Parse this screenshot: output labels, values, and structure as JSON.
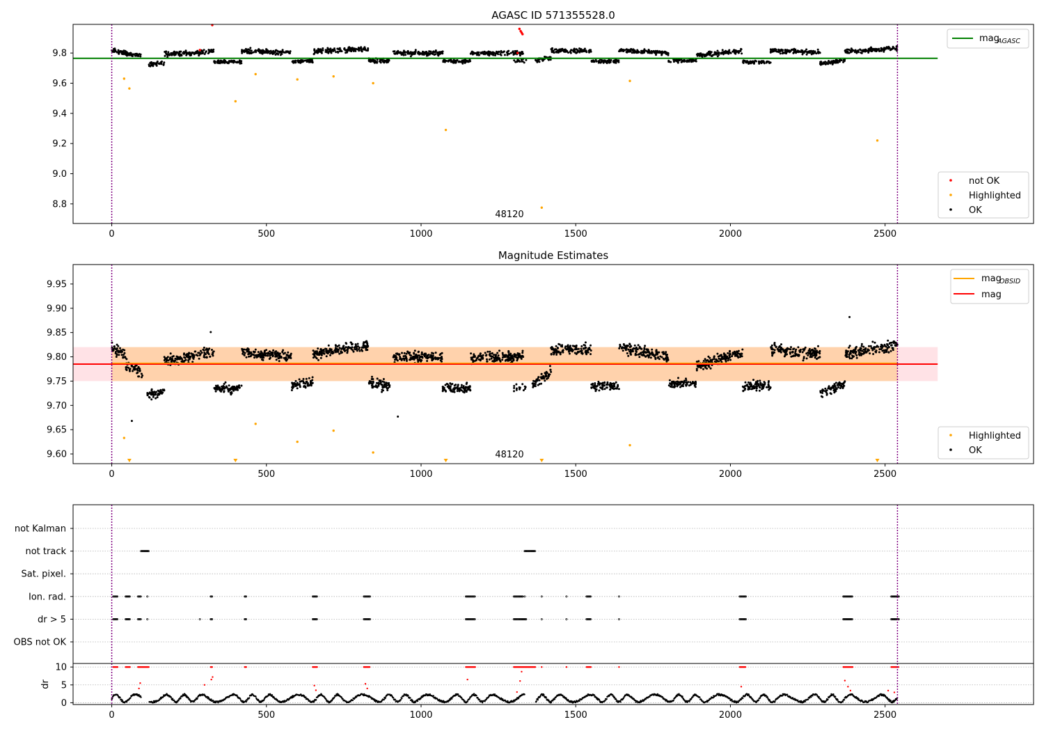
{
  "chart_data": [
    {
      "type": "scatter",
      "title": "AGASC ID 571355528.0",
      "xlim": [
        -125,
        2980
      ],
      "ylim": [
        8.67,
        9.99
      ],
      "xticks": [
        0,
        500,
        1000,
        1500,
        2000,
        2500
      ],
      "yticks": [
        8.8,
        9.0,
        9.2,
        9.4,
        9.6,
        9.8
      ],
      "grid": false,
      "legend_top": {
        "placement": "top-right",
        "entries": [
          {
            "label": "mag",
            "sub": "AGASC",
            "color": "#008000"
          }
        ]
      },
      "legend_bottom": {
        "placement": "bottom-right",
        "entries": [
          {
            "label": "not OK",
            "color": "#ff0000"
          },
          {
            "label": "Highlighted",
            "color": "#ffa500"
          },
          {
            "label": "OK",
            "color": "#000000"
          }
        ]
      },
      "hline": {
        "name": "mag_AGASC",
        "y": 9.765,
        "x": [
          -125,
          2670
        ],
        "color": "#008000"
      },
      "vlines": [
        0,
        2540
      ],
      "annotation": {
        "text": "48120",
        "x": 1270,
        "y": 8.7
      },
      "highlighted": [
        [
          40,
          9.63
        ],
        [
          57,
          9.565
        ],
        [
          400,
          9.48
        ],
        [
          465,
          9.66
        ],
        [
          600,
          9.625
        ],
        [
          717,
          9.645
        ],
        [
          845,
          9.6
        ],
        [
          1080,
          9.29
        ],
        [
          1390,
          8.775
        ],
        [
          1675,
          9.615
        ],
        [
          2475,
          9.22
        ]
      ],
      "not_ok": [
        [
          325,
          9.99
        ],
        [
          1318,
          9.96
        ],
        [
          1322,
          9.945
        ],
        [
          1325,
          9.935
        ],
        [
          1328,
          9.925
        ],
        [
          1312,
          9.8
        ],
        [
          285,
          9.82
        ]
      ],
      "ok_segments": [
        {
          "x": [
            0,
            45
          ],
          "base": 9.81,
          "trend": -0.02,
          "spread": 0.02,
          "n": 40
        },
        {
          "x": [
            45,
            95
          ],
          "base": 9.79,
          "trend": -0.01,
          "spread": 0.02,
          "n": 40
        },
        {
          "x": [
            120,
            170
          ],
          "base": 9.73,
          "trend": 0.01,
          "spread": 0.02,
          "n": 40
        },
        {
          "x": [
            170,
            330
          ],
          "base": 9.8,
          "trend": 0.02,
          "spread": 0.02,
          "n": 120
        },
        {
          "x": [
            330,
            420
          ],
          "base": 9.74,
          "trend": 0.0,
          "spread": 0.015,
          "n": 70
        },
        {
          "x": [
            420,
            580
          ],
          "base": 9.81,
          "trend": -0.01,
          "spread": 0.02,
          "n": 120
        },
        {
          "x": [
            580,
            650
          ],
          "base": 9.745,
          "trend": 0.01,
          "spread": 0.015,
          "n": 60
        },
        {
          "x": [
            650,
            830
          ],
          "base": 9.82,
          "trend": 0.02,
          "spread": 0.02,
          "n": 140
        },
        {
          "x": [
            830,
            900
          ],
          "base": 9.75,
          "trend": 0.0,
          "spread": 0.02,
          "n": 55
        },
        {
          "x": [
            910,
            1070
          ],
          "base": 9.8,
          "trend": 0.0,
          "spread": 0.02,
          "n": 120
        },
        {
          "x": [
            1070,
            1160
          ],
          "base": 9.745,
          "trend": 0.0,
          "spread": 0.015,
          "n": 70
        },
        {
          "x": [
            1160,
            1330
          ],
          "base": 9.8,
          "trend": 0.0,
          "spread": 0.02,
          "n": 130
        },
        {
          "x": [
            1300,
            1340
          ],
          "base": 9.75,
          "trend": 0.0,
          "spread": 0.02,
          "n": 15
        },
        {
          "x": [
            1370,
            1420
          ],
          "base": 9.76,
          "trend": 0.02,
          "spread": 0.02,
          "n": 40
        },
        {
          "x": [
            1420,
            1550
          ],
          "base": 9.815,
          "trend": 0.0,
          "spread": 0.02,
          "n": 100
        },
        {
          "x": [
            1550,
            1640
          ],
          "base": 9.745,
          "trend": 0.0,
          "spread": 0.015,
          "n": 70
        },
        {
          "x": [
            1640,
            1800
          ],
          "base": 9.81,
          "trend": -0.02,
          "spread": 0.02,
          "n": 120
        },
        {
          "x": [
            1800,
            1890
          ],
          "base": 9.75,
          "trend": 0.0,
          "spread": 0.015,
          "n": 65
        },
        {
          "x": [
            1890,
            2040
          ],
          "base": 9.8,
          "trend": 0.03,
          "spread": 0.02,
          "n": 120
        },
        {
          "x": [
            2040,
            2130
          ],
          "base": 9.74,
          "trend": 0.0,
          "spread": 0.015,
          "n": 65
        },
        {
          "x": [
            2130,
            2290
          ],
          "base": 9.81,
          "trend": -0.01,
          "spread": 0.02,
          "n": 120
        },
        {
          "x": [
            2290,
            2370
          ],
          "base": 9.74,
          "trend": 0.02,
          "spread": 0.015,
          "n": 60
        },
        {
          "x": [
            2370,
            2540
          ],
          "base": 9.82,
          "trend": 0.02,
          "spread": 0.02,
          "n": 130
        }
      ]
    },
    {
      "type": "scatter",
      "title": "Magnitude Estimates",
      "xlim": [
        -125,
        2980
      ],
      "ylim": [
        9.58,
        9.99
      ],
      "xticks": [
        0,
        500,
        1000,
        1500,
        2000,
        2500
      ],
      "yticks": [
        9.6,
        9.65,
        9.7,
        9.75,
        9.8,
        9.85,
        9.9,
        9.95
      ],
      "grid": false,
      "legend_top": {
        "placement": "top-right",
        "entries": [
          {
            "label": "mag",
            "sub": "OBSID",
            "color": "#ffa500"
          },
          {
            "label": "mag",
            "color": "#ff0000"
          }
        ]
      },
      "legend_bottom": {
        "placement": "bottom-right",
        "entries": [
          {
            "label": "Highlighted",
            "color": "#ffa500"
          },
          {
            "label": "OK",
            "color": "#000000"
          }
        ]
      },
      "mag_line": {
        "y": 9.785,
        "band": [
          9.75,
          9.82
        ],
        "x": [
          -125,
          2670
        ],
        "color": "#ff0000"
      },
      "mag_obsid": {
        "y": 9.787,
        "band": [
          9.75,
          9.82
        ],
        "x": [
          0,
          2540
        ],
        "color": "#ffa500"
      },
      "vlines": [
        0,
        2540
      ],
      "annotation": {
        "text": "48120",
        "x": 1270,
        "y": 9.597
      },
      "highlighted": [
        [
          40,
          9.633
        ],
        [
          465,
          9.662
        ],
        [
          600,
          9.625
        ],
        [
          717,
          9.648
        ],
        [
          845,
          9.603
        ],
        [
          1675,
          9.618
        ]
      ],
      "off_scale_markers": [
        57,
        400,
        1080,
        1390,
        2475
      ],
      "isolated_ok": [
        [
          65,
          9.668
        ],
        [
          925,
          9.677
        ],
        [
          2385,
          9.882
        ],
        [
          320,
          9.851
        ]
      ],
      "ok_segments": [
        {
          "x": [
            0,
            45
          ],
          "base": 9.81,
          "trend": -0.02,
          "spread": 0.015,
          "n": 45
        },
        {
          "x": [
            45,
            100
          ],
          "base": 9.775,
          "trend": -0.02,
          "spread": 0.015,
          "n": 45
        },
        {
          "x": [
            115,
            170
          ],
          "base": 9.725,
          "trend": 0.01,
          "spread": 0.012,
          "n": 55
        },
        {
          "x": [
            170,
            330
          ],
          "base": 9.8,
          "trend": 0.02,
          "spread": 0.014,
          "n": 150
        },
        {
          "x": [
            330,
            420
          ],
          "base": 9.735,
          "trend": 0.0,
          "spread": 0.012,
          "n": 90
        },
        {
          "x": [
            420,
            580
          ],
          "base": 9.805,
          "trend": -0.01,
          "spread": 0.014,
          "n": 150
        },
        {
          "x": [
            580,
            650
          ],
          "base": 9.745,
          "trend": 0.01,
          "spread": 0.012,
          "n": 70
        },
        {
          "x": [
            650,
            830
          ],
          "base": 9.815,
          "trend": 0.02,
          "spread": 0.015,
          "n": 170
        },
        {
          "x": [
            830,
            900
          ],
          "base": 9.745,
          "trend": -0.01,
          "spread": 0.014,
          "n": 65
        },
        {
          "x": [
            910,
            1070
          ],
          "base": 9.8,
          "trend": 0.0,
          "spread": 0.014,
          "n": 150
        },
        {
          "x": [
            1070,
            1160
          ],
          "base": 9.735,
          "trend": 0.0,
          "spread": 0.012,
          "n": 85
        },
        {
          "x": [
            1160,
            1330
          ],
          "base": 9.8,
          "trend": 0.0,
          "spread": 0.014,
          "n": 160
        },
        {
          "x": [
            1300,
            1340
          ],
          "base": 9.735,
          "trend": 0.0,
          "spread": 0.012,
          "n": 15
        },
        {
          "x": [
            1360,
            1420
          ],
          "base": 9.755,
          "trend": 0.03,
          "spread": 0.015,
          "n": 55
        },
        {
          "x": [
            1420,
            1550
          ],
          "base": 9.815,
          "trend": 0.0,
          "spread": 0.014,
          "n": 120
        },
        {
          "x": [
            1550,
            1640
          ],
          "base": 9.74,
          "trend": 0.0,
          "spread": 0.012,
          "n": 85
        },
        {
          "x": [
            1640,
            1800
          ],
          "base": 9.81,
          "trend": -0.02,
          "spread": 0.014,
          "n": 150
        },
        {
          "x": [
            1800,
            1890
          ],
          "base": 9.745,
          "trend": 0.0,
          "spread": 0.012,
          "n": 80
        },
        {
          "x": [
            1890,
            2040
          ],
          "base": 9.795,
          "trend": 0.03,
          "spread": 0.014,
          "n": 140
        },
        {
          "x": [
            2040,
            2130
          ],
          "base": 9.74,
          "trend": 0.0,
          "spread": 0.012,
          "n": 80
        },
        {
          "x": [
            2130,
            2290
          ],
          "base": 9.81,
          "trend": -0.01,
          "spread": 0.015,
          "n": 150
        },
        {
          "x": [
            2290,
            2370
          ],
          "base": 9.735,
          "trend": 0.02,
          "spread": 0.012,
          "n": 70
        },
        {
          "x": [
            2370,
            2540
          ],
          "base": 9.815,
          "trend": 0.02,
          "spread": 0.015,
          "n": 160
        }
      ]
    },
    {
      "type": "scatter",
      "title": "",
      "xlim": [
        -125,
        2980
      ],
      "xticks": [
        0,
        500,
        1000,
        1500,
        2000,
        2500
      ],
      "grid": true,
      "vlines": [
        0,
        2540
      ],
      "flag_rows": [
        "not Kalman",
        "not track",
        "Sat. pixel.",
        "Ion. rad.",
        "dr > 5",
        "OBS not OK"
      ],
      "flags": {
        "not Kalman": [],
        "not track": [
          [
            95,
            120
          ],
          [
            1335,
            1370
          ]
        ],
        "Sat. pixel.": [],
        "Ion. rad.": [
          [
            5,
            20
          ],
          [
            45,
            60
          ],
          [
            85,
            95
          ],
          [
            115,
            117
          ],
          [
            320,
            325
          ],
          [
            430,
            435
          ],
          [
            650,
            665
          ],
          [
            815,
            835
          ],
          [
            1145,
            1175
          ],
          [
            1300,
            1330
          ],
          [
            1335,
            1337
          ],
          [
            1390,
            1392
          ],
          [
            1470,
            1472
          ],
          [
            1535,
            1550
          ],
          [
            1640,
            1642
          ],
          [
            2030,
            2050
          ],
          [
            2365,
            2395
          ],
          [
            2520,
            2545
          ]
        ],
        "dr > 5": [
          [
            5,
            20
          ],
          [
            45,
            60
          ],
          [
            85,
            95
          ],
          [
            115,
            117
          ],
          [
            285,
            287
          ],
          [
            320,
            325
          ],
          [
            430,
            435
          ],
          [
            650,
            665
          ],
          [
            815,
            835
          ],
          [
            1145,
            1175
          ],
          [
            1300,
            1340
          ],
          [
            1390,
            1392
          ],
          [
            1470,
            1472
          ],
          [
            1535,
            1550
          ],
          [
            1640,
            1642
          ],
          [
            2030,
            2050
          ],
          [
            2365,
            2395
          ],
          [
            2520,
            2545
          ]
        ],
        "OBS not OK": []
      },
      "dr": {
        "ylabel": "dr",
        "ylim": [
          -0.5,
          11
        ],
        "yticks": [
          0,
          5,
          10
        ],
        "base_range": [
          0,
          2.5
        ],
        "gaps": [
          [
            95,
            120
          ],
          [
            1335,
            1370
          ]
        ],
        "clip_value": 10,
        "red_runs": [
          [
            5,
            20
          ],
          [
            45,
            60
          ],
          [
            85,
            120
          ],
          [
            320,
            325
          ],
          [
            430,
            435
          ],
          [
            650,
            665
          ],
          [
            815,
            835
          ],
          [
            1145,
            1175
          ],
          [
            1300,
            1370
          ],
          [
            1390,
            1392
          ],
          [
            1470,
            1472
          ],
          [
            1535,
            1550
          ],
          [
            1640,
            1642
          ],
          [
            2030,
            2050
          ],
          [
            2365,
            2395
          ],
          [
            2520,
            2545
          ]
        ],
        "red_mid": [
          [
            88,
            4.0
          ],
          [
            92,
            5.5
          ],
          [
            300,
            5.0
          ],
          [
            322,
            6.5
          ],
          [
            326,
            7.2
          ],
          [
            655,
            4.8
          ],
          [
            660,
            3.5
          ],
          [
            820,
            5.3
          ],
          [
            826,
            4.0
          ],
          [
            1150,
            6.5
          ],
          [
            1310,
            3.0
          ],
          [
            1320,
            6.1
          ],
          [
            1325,
            8.7
          ],
          [
            2035,
            4.5
          ],
          [
            2370,
            6.2
          ],
          [
            2380,
            4.5
          ],
          [
            2388,
            3.4
          ],
          [
            2510,
            3.4
          ],
          [
            2530,
            2.9
          ]
        ]
      }
    }
  ]
}
